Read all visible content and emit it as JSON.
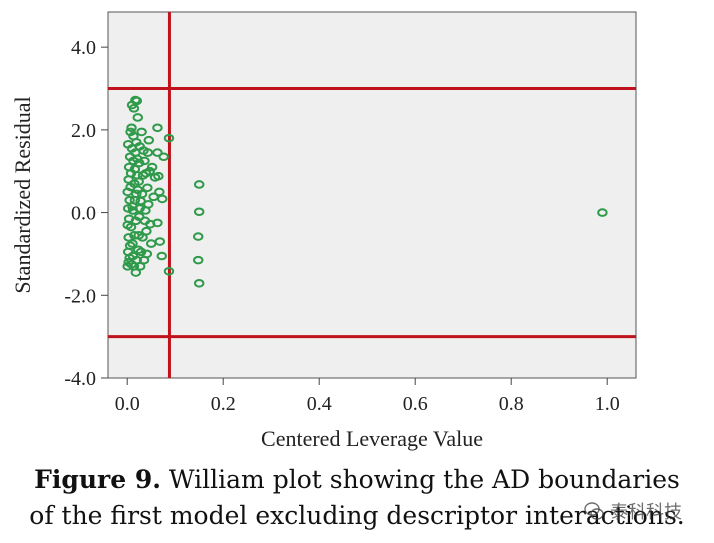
{
  "chart_data": {
    "type": "scatter",
    "xlabel": "Centered Leverage Value",
    "ylabel": "Standardized Residual",
    "xlim": [
      -0.04,
      1.06
    ],
    "ylim": [
      -4.0,
      4.85
    ],
    "xticks": [
      0.0,
      0.2,
      0.4,
      0.6,
      0.8,
      1.0
    ],
    "xtick_labels": [
      "0.0",
      "0.2",
      "0.4",
      "0.6",
      "0.8",
      "1.0"
    ],
    "yticks": [
      4.0,
      2.0,
      0.0,
      -2.0,
      -4.0
    ],
    "ytick_labels": [
      "4.0",
      "2.0",
      "0.0",
      "-2.0",
      "-4.0"
    ],
    "grid": false,
    "plot_background": "#efefef",
    "marker_color": "#2e9a4a",
    "reference_line_color": "#c0121b",
    "reference_lines": {
      "horizontal": [
        3.0,
        -3.0
      ],
      "vertical": [
        0.088
      ]
    },
    "series": [
      {
        "points": [
          [
            0.99,
            0.0
          ],
          [
            0.15,
            0.68
          ],
          [
            0.15,
            0.02
          ],
          [
            0.148,
            -0.58
          ],
          [
            0.148,
            -1.15
          ],
          [
            0.15,
            -1.71
          ],
          [
            0.087,
            1.8
          ],
          [
            0.087,
            -1.42
          ],
          [
            0.076,
            1.35
          ],
          [
            0.073,
            0.33
          ],
          [
            0.072,
            -1.05
          ],
          [
            0.063,
            2.05
          ],
          [
            0.063,
            1.45
          ],
          [
            0.065,
            0.88
          ],
          [
            0.067,
            0.5
          ],
          [
            0.063,
            -0.25
          ],
          [
            0.068,
            -0.7
          ],
          [
            0.058,
            0.85
          ],
          [
            0.055,
            0.38
          ],
          [
            0.052,
            1.1
          ],
          [
            0.05,
            -0.75
          ],
          [
            0.048,
            -0.28
          ],
          [
            0.045,
            1.75
          ],
          [
            0.043,
            1.45
          ],
          [
            0.042,
            0.6
          ],
          [
            0.04,
            -0.45
          ],
          [
            0.038,
            0.05
          ],
          [
            0.036,
            1.25
          ],
          [
            0.035,
            -1.15
          ],
          [
            0.033,
            0.9
          ],
          [
            0.032,
            -0.6
          ],
          [
            0.03,
            1.95
          ],
          [
            0.028,
            0.28
          ],
          [
            0.027,
            -1.3
          ],
          [
            0.026,
            1.6
          ],
          [
            0.025,
            -0.1
          ],
          [
            0.024,
            0.75
          ],
          [
            0.023,
            -0.9
          ],
          [
            0.022,
            2.3
          ],
          [
            0.021,
            1.3
          ],
          [
            0.02,
            2.7
          ],
          [
            0.019,
            0.45
          ],
          [
            0.018,
            -1.45
          ],
          [
            0.017,
            2.72
          ],
          [
            0.016,
            1.05
          ],
          [
            0.015,
            -0.55
          ],
          [
            0.014,
            2.52
          ],
          [
            0.013,
            1.85
          ],
          [
            0.012,
            -1.05
          ],
          [
            0.011,
            0.15
          ],
          [
            0.01,
            2.6
          ],
          [
            0.01,
            1.55
          ],
          [
            0.009,
            -1.25
          ],
          [
            0.008,
            0.95
          ],
          [
            0.008,
            -0.35
          ],
          [
            0.007,
            1.95
          ],
          [
            0.007,
            0.62
          ],
          [
            0.006,
            -0.8
          ],
          [
            0.006,
            1.35
          ],
          [
            0.005,
            -1.1
          ],
          [
            0.005,
            0.3
          ],
          [
            0.004,
            1.1
          ],
          [
            0.004,
            -0.15
          ],
          [
            0.003,
            -1.2
          ],
          [
            0.003,
            0.8
          ],
          [
            0.003,
            -0.6
          ],
          [
            0.002,
            1.65
          ],
          [
            0.002,
            0.1
          ],
          [
            0.002,
            -0.95
          ],
          [
            0.001,
            0.5
          ],
          [
            0.001,
            -0.3
          ],
          [
            0.001,
            -1.3
          ],
          [
            0.019,
            1.7
          ],
          [
            0.021,
            0.9
          ],
          [
            0.024,
            -0.55
          ],
          [
            0.026,
            0.1
          ],
          [
            0.029,
            -0.95
          ],
          [
            0.031,
            0.45
          ],
          [
            0.034,
            1.5
          ],
          [
            0.037,
            -0.2
          ],
          [
            0.039,
            0.95
          ],
          [
            0.041,
            -1.0
          ],
          [
            0.044,
            0.2
          ],
          [
            0.047,
            1.0
          ],
          [
            0.018,
            -0.2
          ],
          [
            0.015,
            0.7
          ],
          [
            0.013,
            1.25
          ],
          [
            0.011,
            -0.75
          ],
          [
            0.009,
            2.05
          ],
          [
            0.016,
            0.3
          ],
          [
            0.02,
            -1.15
          ],
          [
            0.022,
            0.55
          ],
          [
            0.025,
            1.2
          ],
          [
            0.012,
            0.05
          ],
          [
            0.014,
            -1.3
          ],
          [
            0.017,
            1.45
          ]
        ]
      }
    ]
  },
  "caption": {
    "label": "Figure 9.",
    "line1_rest": " William plot showing the AD boundaries",
    "line2": "of the first model excluding descriptor interactions."
  },
  "watermark": {
    "text": "泰科科技"
  }
}
